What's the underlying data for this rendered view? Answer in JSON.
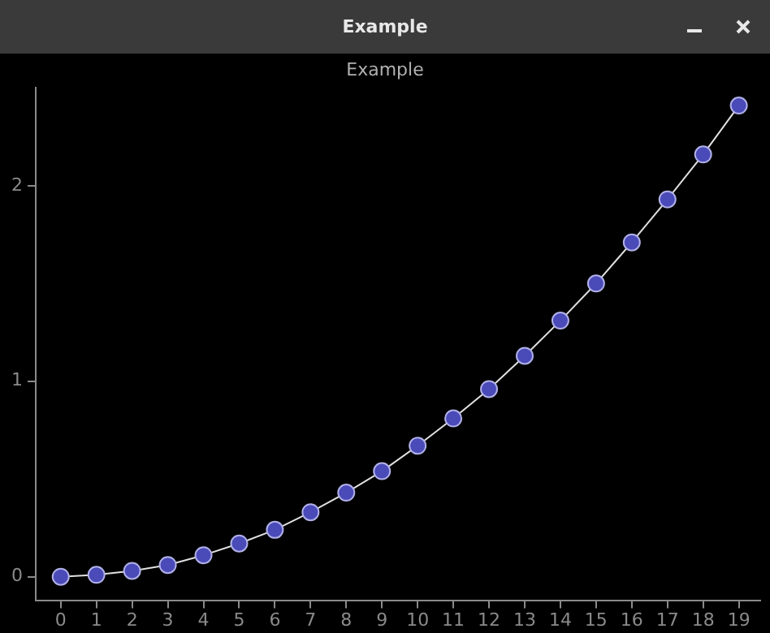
{
  "chart_data": {
    "type": "line",
    "title": "Example",
    "annotations": [
      "Example"
    ],
    "x": [
      0,
      1,
      2,
      3,
      4,
      5,
      6,
      7,
      8,
      9,
      10,
      11,
      12,
      13,
      14,
      15,
      16,
      17,
      18,
      19
    ],
    "series": [
      {
        "color": "#4a4ab8",
        "values": [
          0,
          0.01,
          0.03,
          0.06,
          0.11,
          0.17,
          0.24,
          0.33,
          0.43,
          0.54,
          0.67,
          0.81,
          0.96,
          1.13,
          1.31,
          1.5,
          1.71,
          1.93,
          2.16,
          2.41
        ]
      }
    ],
    "xlim": [
      -0.7,
      19.6
    ],
    "xticks": [
      0,
      1,
      2,
      3,
      4,
      5,
      6,
      7,
      8,
      9,
      10,
      11,
      12,
      13,
      14,
      15,
      16,
      17,
      18,
      19
    ],
    "ylim": [
      -0.12,
      2.5
    ],
    "yticks": [
      0,
      1,
      2
    ],
    "marker": "circle",
    "line_style": "solid",
    "grid": false,
    "legend": false
  }
}
